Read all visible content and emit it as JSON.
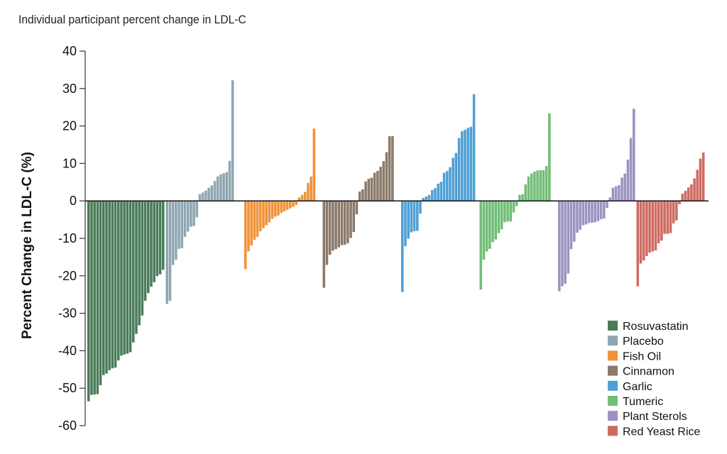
{
  "chart_data": {
    "type": "bar",
    "title": "Individual participant percent change in LDL-C",
    "xlabel": "",
    "ylabel": "Percent Change in LDL-C (%)",
    "ylim": [
      -60,
      40
    ],
    "yticks": [
      40,
      30,
      20,
      10,
      0,
      -10,
      -20,
      -30,
      -40,
      -50,
      -60
    ],
    "legend_position": "bottom-right",
    "grid": false,
    "series": [
      {
        "name": "Rosuvastatin",
        "color": "#4a7c59",
        "values": [
          -53.5,
          -51.8,
          -51.7,
          -51.6,
          -49.2,
          -46.5,
          -46.1,
          -45.2,
          -44.7,
          -44.5,
          -42.6,
          -41.3,
          -41.0,
          -40.8,
          -40.4,
          -37.8,
          -35.5,
          -33.2,
          -30.6,
          -26.7,
          -24.6,
          -22.9,
          -21.7,
          -20.1,
          -19.6,
          -18.4
        ]
      },
      {
        "name": "Placebo",
        "color": "#8fa6b2",
        "values": [
          -27.5,
          -26.7,
          -17.1,
          -15.7,
          -12.8,
          -12.6,
          -9.6,
          -8.2,
          -6.9,
          -6.7,
          -4.4,
          1.8,
          2.2,
          2.7,
          3.5,
          4.1,
          5.3,
          6.5,
          7.1,
          7.4,
          7.7,
          10.7,
          32.2
        ]
      },
      {
        "name": "Fish Oil",
        "color": "#f0923a",
        "values": [
          -18.2,
          -13.5,
          -11.9,
          -10.4,
          -9.6,
          -8.1,
          -7.3,
          -6.5,
          -5.7,
          -4.8,
          -4.2,
          -3.9,
          -3.2,
          -2.8,
          -2.4,
          -2.0,
          -1.6,
          -1.1,
          0.9,
          1.6,
          2.4,
          4.8,
          6.5,
          19.3
        ]
      },
      {
        "name": "Cinnamon",
        "color": "#8b7a6b",
        "values": [
          -23.2,
          -17.1,
          -14.4,
          -13.3,
          -12.9,
          -12.4,
          -11.8,
          -11.7,
          -11.3,
          -9.9,
          -8.3,
          -3.6,
          2.5,
          3.1,
          5.2,
          5.9,
          6.2,
          7.5,
          8.0,
          9.1,
          10.6,
          13.0,
          17.3,
          17.3
        ]
      },
      {
        "name": "Garlic",
        "color": "#4fa0d5",
        "values": [
          -24.3,
          -12.1,
          -10.1,
          -8.4,
          -8.1,
          -8.0,
          -3.4,
          0.8,
          1.2,
          1.6,
          2.9,
          3.4,
          4.6,
          5.1,
          7.5,
          8.0,
          9.0,
          11.5,
          12.8,
          16.8,
          18.6,
          19.0,
          19.5,
          19.8,
          28.5
        ]
      },
      {
        "name": "Tumeric",
        "color": "#72bd77",
        "values": [
          -23.7,
          -15.7,
          -13.5,
          -12.8,
          -11.0,
          -10.3,
          -8.6,
          -7.6,
          -5.7,
          -5.5,
          -5.5,
          -3.1,
          -1.4,
          1.6,
          1.8,
          4.4,
          6.5,
          7.3,
          7.8,
          8.1,
          8.2,
          8.2,
          9.3,
          23.4
        ]
      },
      {
        "name": "Plant Sterols",
        "color": "#9b93c0",
        "values": [
          -24.1,
          -22.8,
          -22.1,
          -19.4,
          -12.9,
          -10.9,
          -8.5,
          -7.7,
          -6.5,
          -6.3,
          -5.9,
          -5.8,
          -5.7,
          -5.4,
          -4.9,
          -4.7,
          -1.9,
          0.9,
          3.5,
          3.9,
          4.2,
          6.2,
          7.3,
          11.0,
          16.8,
          24.6
        ]
      },
      {
        "name": "Red Yeast Rice",
        "color": "#cd6b61",
        "values": [
          -22.8,
          -16.7,
          -15.9,
          -14.7,
          -13.8,
          -13.5,
          -13.2,
          -11.3,
          -10.6,
          -8.8,
          -8.8,
          -8.6,
          -6.0,
          -5.2,
          -0.9,
          1.9,
          2.7,
          3.6,
          4.4,
          6.0,
          8.3,
          11.3,
          12.9
        ]
      }
    ]
  }
}
